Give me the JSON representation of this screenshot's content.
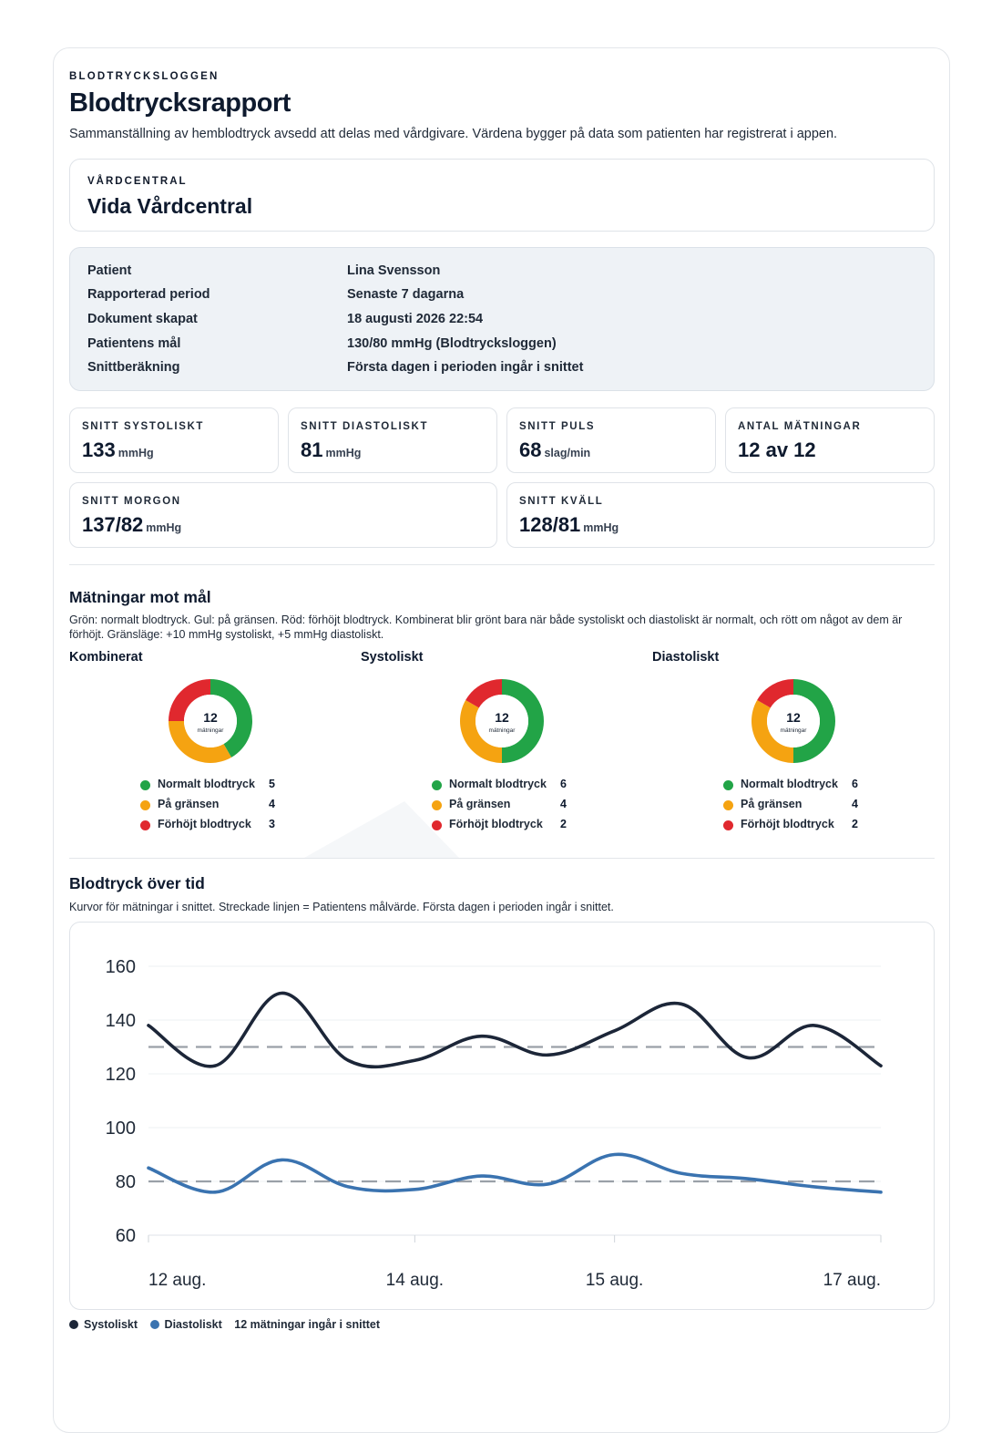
{
  "header": {
    "brand": "BLODTRYCKSLOGGEN",
    "title": "Blodtrycksrapport",
    "subtitle": "Sammanställning av hemblodtryck avsedd att delas med vårdgivare. Värdena bygger på data som patienten har registrerat i appen."
  },
  "clinic": {
    "label": "VÅRDCENTRAL",
    "name": "Vida Vårdcentral"
  },
  "info": [
    {
      "key": "Patient",
      "value": "Lina Svensson"
    },
    {
      "key": "Rapporterad period",
      "value": "Senaste 7 dagarna"
    },
    {
      "key": "Dokument skapat",
      "value": "18 augusti 2026 22:54"
    },
    {
      "key": "Patientens mål",
      "value": "130/80 mmHg (Blodtrycksloggen)"
    },
    {
      "key": "Snittberäkning",
      "value": "Första dagen i perioden ingår i snittet"
    }
  ],
  "stats": {
    "sys": {
      "label": "SNITT SYSTOLISKT",
      "value": "133",
      "unit": "mmHg"
    },
    "dia": {
      "label": "SNITT DIASTOLISKT",
      "value": "81",
      "unit": "mmHg"
    },
    "pulse": {
      "label": "SNITT PULS",
      "value": "68",
      "unit": "slag/min"
    },
    "count": {
      "label": "ANTAL MÄTNINGAR",
      "value": "12 av 12",
      "unit": ""
    },
    "morning": {
      "label": "SNITT MORGON",
      "value": "137/82",
      "unit": "mmHg"
    },
    "evening": {
      "label": "SNITT KVÄLL",
      "value": "128/81",
      "unit": "mmHg"
    }
  },
  "targets": {
    "title": "Mätningar mot mål",
    "desc": "Grön: normalt blodtryck. Gul: på gränsen. Röd: förhöjt blodtryck. Kombinerat blir grönt bara när både systoliskt och diastoliskt är normalt, och rött om något av dem är förhöjt. Gränsläge: +10 mmHg systoliskt, +5 mmHg diastoliskt.",
    "center_count": "12",
    "center_label": "mätningar",
    "colors": {
      "normal": "#22a447",
      "border": "#f5a311",
      "high": "#e0282e"
    },
    "donuts": [
      {
        "title": "Kombinerat",
        "normal": 5,
        "border": 4,
        "high": 3
      },
      {
        "title": "Systoliskt",
        "normal": 6,
        "border": 4,
        "high": 2
      },
      {
        "title": "Diastoliskt",
        "normal": 6,
        "border": 4,
        "high": 2
      }
    ],
    "legend_labels": {
      "normal": "Normalt blodtryck",
      "border": "På gränsen",
      "high": "Förhöjt blodtryck"
    }
  },
  "trend": {
    "title": "Blodtryck över tid",
    "desc": "Kurvor för mätningar i snittet. Streckade linjen = Patientens målvärde. Första dagen i perioden ingår i snittet.",
    "legend": {
      "sys": "Systoliskt",
      "dia": "Diastoliskt",
      "note": "12 mätningar ingår i snittet"
    },
    "colors": {
      "sys": "#1c2638",
      "dia": "#3a73b0",
      "target": "#9aa0a8"
    }
  },
  "chart_data": {
    "type": "line",
    "title": "Blodtryck över tid",
    "x": [
      0,
      1,
      2,
      3,
      4,
      5,
      6,
      7,
      8,
      9,
      10,
      11
    ],
    "x_tick_positions": [
      0,
      4,
      7,
      11
    ],
    "x_tick_labels": [
      "12 aug.",
      "14 aug.",
      "15 aug.",
      "17 aug."
    ],
    "ylim": [
      60,
      160
    ],
    "y_ticks": [
      60,
      80,
      100,
      120,
      140,
      160
    ],
    "grid": true,
    "series": [
      {
        "name": "Systoliskt",
        "values": [
          138,
          123,
          150,
          125,
          125,
          134,
          127,
          136,
          146,
          126,
          138,
          123
        ]
      },
      {
        "name": "Diastoliskt",
        "values": [
          85,
          76,
          88,
          78,
          77,
          82,
          79,
          90,
          83,
          81,
          78,
          76
        ]
      }
    ],
    "targets": [
      130,
      80
    ]
  }
}
